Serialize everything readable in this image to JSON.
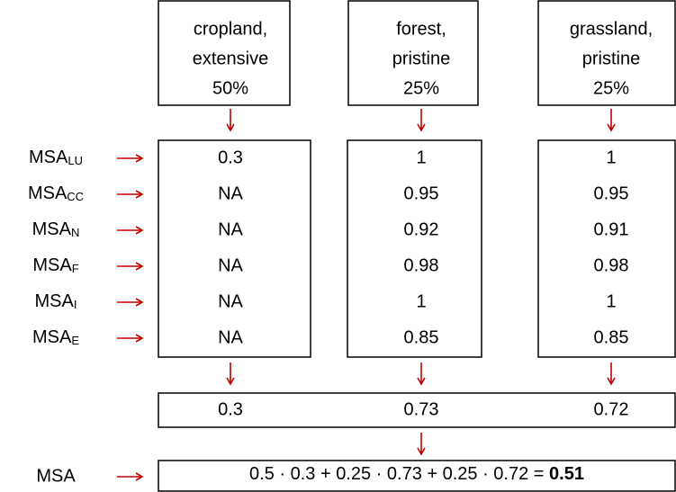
{
  "land_uses": [
    {
      "lines": [
        "cropland,",
        "extensive",
        "50%"
      ]
    },
    {
      "lines": [
        "forest,",
        "pristine",
        "25%"
      ]
    },
    {
      "lines": [
        "grassland,",
        "pristine",
        "25%"
      ]
    }
  ],
  "rows": [
    {
      "label": "MSA",
      "sub": "LU",
      "values": [
        "0.3",
        "1",
        "1"
      ]
    },
    {
      "label": "MSA",
      "sub": "CC",
      "values": [
        "NA",
        "0.95",
        "0.95"
      ]
    },
    {
      "label": "MSA",
      "sub": "N",
      "values": [
        "NA",
        "0.92",
        "0.91"
      ]
    },
    {
      "label": "MSA",
      "sub": "F",
      "values": [
        "NA",
        "0.98",
        "0.98"
      ]
    },
    {
      "label": "MSA",
      "sub": "I",
      "values": [
        "NA",
        "1",
        "1"
      ]
    },
    {
      "label": "MSA",
      "sub": "E",
      "values": [
        "NA",
        "0.85",
        "0.85"
      ]
    }
  ],
  "totals": [
    "0.3",
    "0.73",
    "0.72"
  ],
  "final": {
    "label": "MSA",
    "formula": "0.5 · 0.3 + 0.25 · 0.73 + 0.25 · 0.72 = ",
    "result": "0.51"
  }
}
